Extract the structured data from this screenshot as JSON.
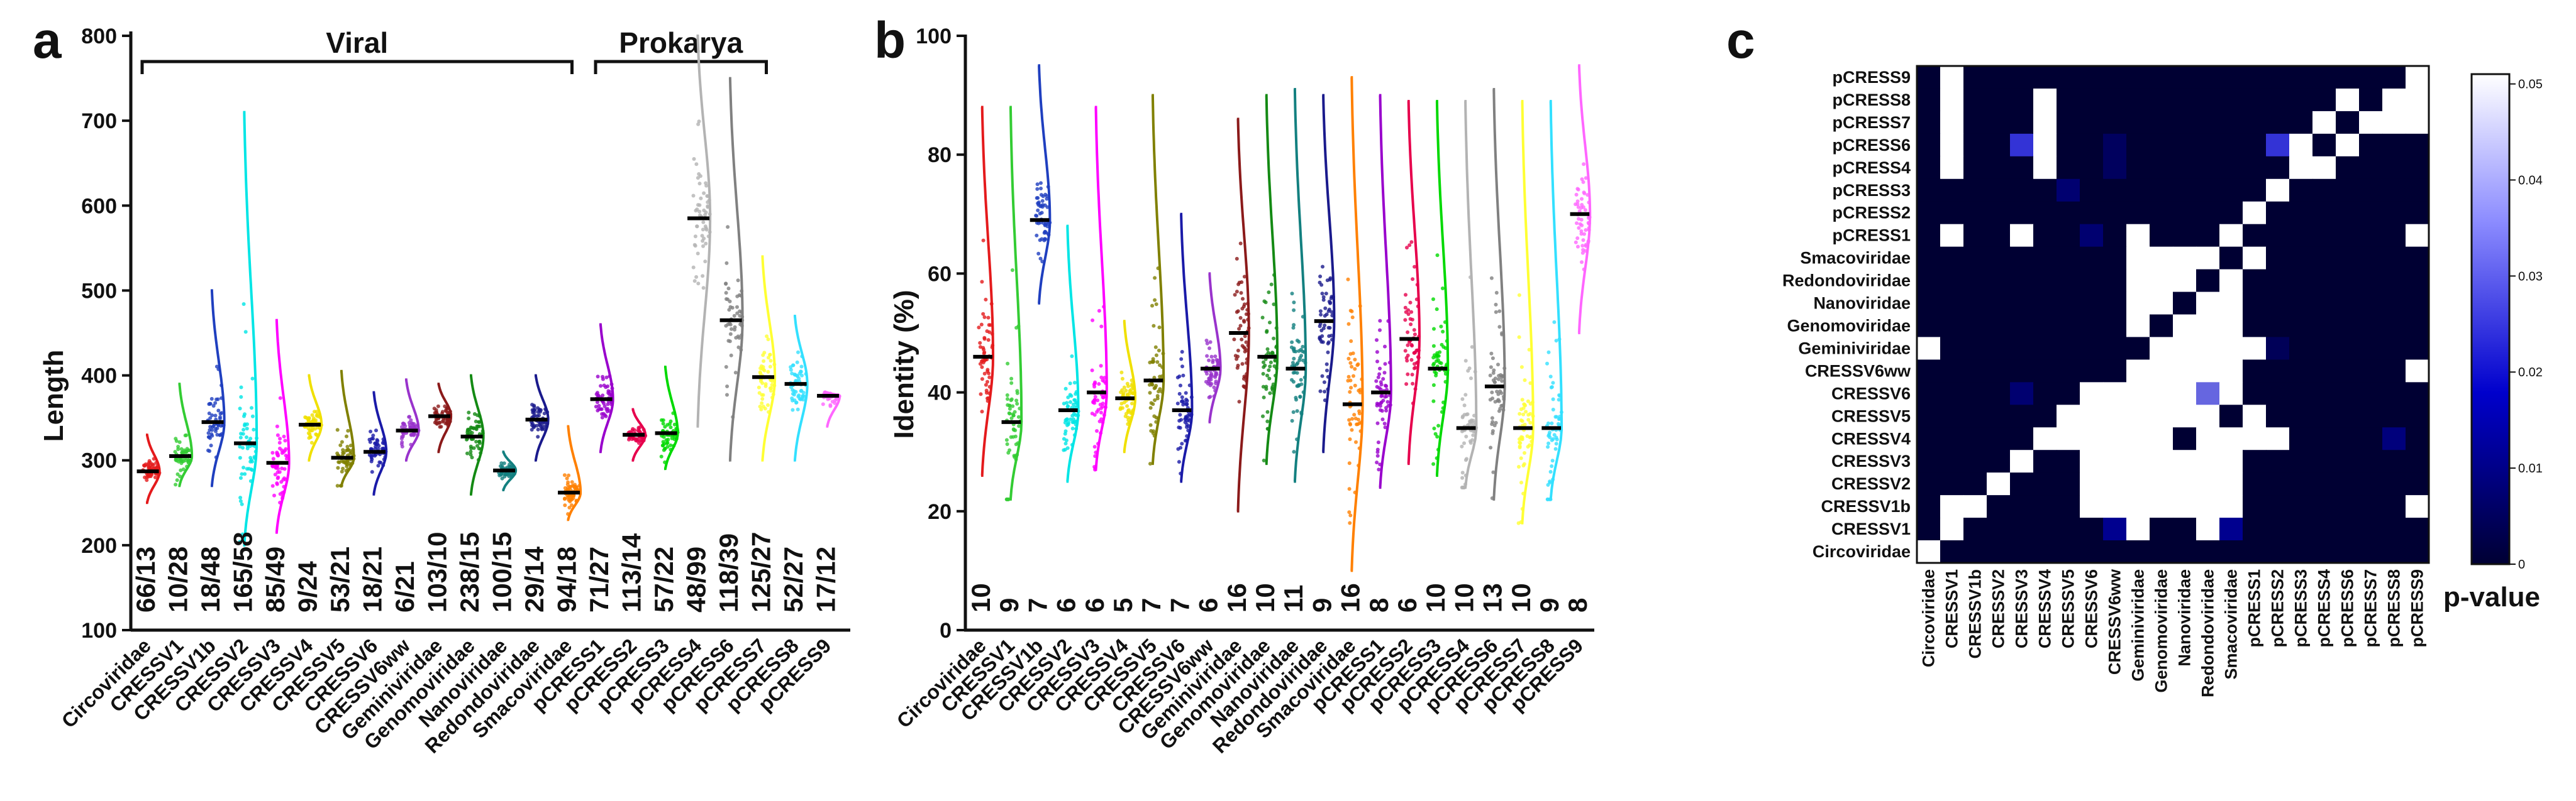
{
  "panels": {
    "a": "a",
    "b": "b",
    "c": "c"
  },
  "colors": [
    "#e41a1c",
    "#33cc33",
    "#1f3fbf",
    "#00e5e5",
    "#ff00ff",
    "#f0e000",
    "#808000",
    "#1a1aa8",
    "#9933cc",
    "#8b1a1a",
    "#148a14",
    "#138080",
    "#1a1a8c",
    "#ff8000",
    "#9900cc",
    "#e6004c",
    "#00d900",
    "#b3b3b3",
    "#808080",
    "#ffff33",
    "#33e0ff",
    "#ff66ff"
  ],
  "chart_data": [
    {
      "type": "scatter",
      "subtype": "half-violin with jittered points and median lines",
      "panel": "a",
      "title": "",
      "xlabel": "",
      "ylabel": "Length",
      "ylim": [
        100,
        800
      ],
      "yticks": [
        100,
        200,
        300,
        400,
        500,
        600,
        700,
        800
      ],
      "groups": [
        {
          "label": "Viral",
          "from": 0,
          "to": 13
        },
        {
          "label": "Prokarya",
          "from": 14,
          "to": 19
        }
      ],
      "categories": [
        "Circoviridae",
        "CRESSV1",
        "CRESSV1b",
        "CRESSV2",
        "CRESSV3",
        "CRESSV4",
        "CRESSV5",
        "CRESSV6",
        "CRESSV6ww",
        "Geminiviridae",
        "Genomoviridae",
        "Nanoviridae",
        "Redondoviridae",
        "Smacoviridae",
        "pCRESS1",
        "pCRESS2",
        "pCRESS3",
        "pCRESS4",
        "pCRESS6",
        "pCRESS7",
        "pCRESS8",
        "pCRESS9"
      ],
      "medians": [
        287,
        305,
        345,
        320,
        297,
        342,
        303,
        310,
        335,
        352,
        328,
        288,
        348,
        262,
        372,
        330,
        332,
        585,
        465,
        398,
        390,
        376
      ],
      "ranges": [
        [
          250,
          330
        ],
        [
          270,
          390
        ],
        [
          270,
          500
        ],
        [
          200,
          710
        ],
        [
          215,
          465
        ],
        [
          300,
          400
        ],
        [
          270,
          405
        ],
        [
          260,
          380
        ],
        [
          300,
          395
        ],
        [
          310,
          390
        ],
        [
          260,
          400
        ],
        [
          265,
          310
        ],
        [
          300,
          400
        ],
        [
          230,
          340
        ],
        [
          310,
          460
        ],
        [
          300,
          360
        ],
        [
          290,
          410
        ],
        [
          340,
          800
        ],
        [
          300,
          750
        ],
        [
          300,
          540
        ],
        [
          300,
          470
        ],
        [
          340,
          380
        ]
      ],
      "counts": [
        "66/13",
        "10/28",
        "18/48",
        "165/58",
        "85/49",
        "9/24",
        "53/21",
        "18/21",
        "6/21",
        "103/10",
        "238/15",
        "100/15",
        "29/14",
        "94/18",
        "71/27",
        "113/14",
        "57/22",
        "48/99",
        "118/39",
        "125/27",
        "52/27",
        "17/12"
      ]
    },
    {
      "type": "scatter",
      "subtype": "half-violin with jittered points and median lines",
      "panel": "b",
      "title": "",
      "xlabel": "",
      "ylabel": "Identity (%)",
      "ylim": [
        0,
        100
      ],
      "yticks": [
        0,
        20,
        40,
        60,
        80,
        100
      ],
      "categories": [
        "Circoviridae",
        "CRESSV1",
        "CRESSV1b",
        "CRESSV2",
        "CRESSV3",
        "CRESSV4",
        "CRESSV5",
        "CRESSV6",
        "CRESSV6ww",
        "Geminiviridae",
        "Genomoviridae",
        "Nanoviridae",
        "Redondoviridae",
        "Smacoviridae",
        "pCRESS1",
        "pCRESS2",
        "pCRESS3",
        "pCRESS4",
        "pCRESS6",
        "pCRESS7",
        "pCRESS8",
        "pCRESS9"
      ],
      "medians": [
        46,
        35,
        69,
        37,
        40,
        39,
        42,
        37,
        44,
        50,
        46,
        44,
        52,
        38,
        40,
        49,
        44,
        34,
        41,
        34,
        34,
        70
      ],
      "ranges": [
        [
          26,
          88
        ],
        [
          22,
          88
        ],
        [
          55,
          95
        ],
        [
          25,
          68
        ],
        [
          27,
          88
        ],
        [
          30,
          52
        ],
        [
          28,
          90
        ],
        [
          25,
          70
        ],
        [
          35,
          60
        ],
        [
          20,
          86
        ],
        [
          28,
          90
        ],
        [
          25,
          91
        ],
        [
          30,
          90
        ],
        [
          10,
          93
        ],
        [
          24,
          90
        ],
        [
          28,
          89
        ],
        [
          26,
          89
        ],
        [
          24,
          89
        ],
        [
          22,
          91
        ],
        [
          18,
          89
        ],
        [
          22,
          89
        ],
        [
          50,
          95
        ]
      ],
      "counts": [
        "10",
        "9",
        "7",
        "6",
        "6",
        "5",
        "7",
        "7",
        "6",
        "16",
        "10",
        "11",
        "9",
        "16",
        "8",
        "6",
        "10",
        "10",
        "13",
        "10",
        "9",
        "8"
      ]
    },
    {
      "type": "heatmap",
      "panel": "c",
      "title": "",
      "colorbar_label": "p-value",
      "colorbar_range": [
        0,
        0.05
      ],
      "colorbar_ticks": [
        "0",
        "0.01",
        "0.02",
        "0.03",
        "0.04",
        "0.05"
      ],
      "rows": [
        "pCRESS9",
        "pCRESS8",
        "pCRESS7",
        "pCRESS6",
        "pCRESS4",
        "pCRESS3",
        "pCRESS2",
        "pCRESS1",
        "Smacoviridae",
        "Redondoviridae",
        "Nanoviridae",
        "Genomoviridae",
        "Geminiviridae",
        "CRESSV6ww",
        "CRESSV6",
        "CRESSV5",
        "CRESSV4",
        "CRESSV3",
        "CRESSV2",
        "CRESSV1b",
        "CRESSV1",
        "Circoviridae"
      ],
      "cols": [
        "Circoviridae",
        "CRESSV1",
        "CRESSV1b",
        "CRESSV2",
        "CRESSV3",
        "CRESSV4",
        "CRESSV5",
        "CRESSV6",
        "CRESSV6ww",
        "Geminiviridae",
        "Genomoviridae",
        "Nanoviridae",
        "Redondoviridae",
        "Smacoviridae",
        "pCRESS1",
        "pCRESS2",
        "pCRESS3",
        "pCRESS4",
        "pCRESS6",
        "pCRESS7",
        "pCRESS8",
        "pCRESS9"
      ],
      "values": [
        [
          0,
          0.05,
          0,
          0,
          0,
          0,
          0,
          0,
          0,
          0,
          0,
          0,
          0,
          0,
          0,
          0,
          0,
          0,
          0,
          0,
          0,
          0.05
        ],
        [
          0,
          0.05,
          0,
          0,
          0,
          0.05,
          0,
          0,
          0,
          0,
          0,
          0,
          0,
          0,
          0,
          0,
          0,
          0,
          0.05,
          0,
          0.05,
          0.05
        ],
        [
          0,
          0.05,
          0,
          0,
          0,
          0.05,
          0,
          0,
          0,
          0,
          0,
          0,
          0,
          0,
          0,
          0,
          0,
          0.05,
          0,
          0.05,
          0.05,
          0.05
        ],
        [
          0,
          0.05,
          0,
          0,
          0.03,
          0.05,
          0,
          0.003,
          0.007,
          0,
          0,
          0,
          0,
          0,
          0,
          0.03,
          0.05,
          0,
          0.05,
          0,
          0,
          0
        ],
        [
          0,
          0.05,
          0,
          0,
          0,
          0.05,
          0,
          0.003,
          0.007,
          0,
          0,
          0,
          0,
          0,
          0,
          0,
          0.05,
          0.05,
          0,
          0,
          0,
          0
        ],
        [
          0,
          0,
          0,
          0,
          0,
          0,
          0.01,
          0,
          0,
          0,
          0,
          0,
          0,
          0,
          0,
          0.05,
          0,
          0,
          0,
          0,
          0,
          0
        ],
        [
          0,
          0,
          0,
          0,
          0,
          0,
          0,
          0,
          0,
          0,
          0,
          0,
          0,
          0,
          0.05,
          0,
          0,
          0,
          0,
          0,
          0,
          0
        ],
        [
          0,
          0.05,
          0,
          0,
          0.05,
          0,
          0,
          0.01,
          0,
          0.05,
          0,
          0,
          0,
          0.05,
          0,
          0,
          0,
          0,
          0,
          0,
          0,
          0.05
        ],
        [
          0,
          0,
          0,
          0,
          0,
          0,
          0,
          0,
          0,
          0.05,
          0.05,
          0.05,
          0.05,
          0,
          0.05,
          0,
          0,
          0,
          0,
          0,
          0,
          0
        ],
        [
          0,
          0,
          0,
          0,
          0,
          0,
          0,
          0,
          0,
          0.05,
          0.05,
          0.05,
          0,
          0.05,
          0,
          0,
          0,
          0,
          0,
          0,
          0,
          0
        ],
        [
          0,
          0,
          0,
          0,
          0,
          0,
          0.003,
          0,
          0,
          0.05,
          0.05,
          0,
          0.05,
          0.05,
          0,
          0,
          0,
          0,
          0,
          0,
          0,
          0
        ],
        [
          0,
          0,
          0,
          0,
          0,
          0,
          0,
          0,
          0,
          0.05,
          0,
          0.05,
          0.05,
          0.05,
          0,
          0,
          0,
          0,
          0,
          0,
          0,
          0
        ],
        [
          0.05,
          0,
          0,
          0,
          0,
          0,
          0,
          0,
          0,
          0,
          0.05,
          0.05,
          0.05,
          0.05,
          0.05,
          0.006,
          0,
          0,
          0,
          0,
          0,
          0
        ],
        [
          0,
          0,
          0,
          0,
          0,
          0,
          0,
          0,
          0,
          0.05,
          0.05,
          0.05,
          0.05,
          0.05,
          0,
          0,
          0,
          0,
          0,
          0,
          0,
          0.05
        ],
        [
          0,
          0,
          0,
          0,
          0.01,
          0,
          0,
          0.05,
          0.05,
          0.05,
          0.05,
          0.05,
          0.035,
          0.05,
          0,
          0,
          0,
          0,
          0,
          0,
          0,
          0
        ],
        [
          0,
          0,
          0,
          0,
          0,
          0,
          0.05,
          0.05,
          0.05,
          0.05,
          0.05,
          0.05,
          0.05,
          0,
          0.05,
          0,
          0.003,
          0,
          0,
          0,
          0,
          0
        ],
        [
          0,
          0,
          0,
          0,
          0,
          0.05,
          0.05,
          0.05,
          0.05,
          0.05,
          0.05,
          0.003,
          0.05,
          0.05,
          0.05,
          0.05,
          0,
          0,
          0,
          0,
          0.012,
          0
        ],
        [
          0,
          0,
          0,
          0,
          0.05,
          0,
          0,
          0.05,
          0.05,
          0.05,
          0.05,
          0.05,
          0.05,
          0.05,
          0,
          0,
          0,
          0,
          0,
          0,
          0,
          0
        ],
        [
          0,
          0,
          0,
          0.05,
          0,
          0,
          0,
          0.05,
          0.05,
          0.05,
          0.05,
          0.05,
          0.05,
          0.05,
          0,
          0,
          0,
          0,
          0,
          0,
          0,
          0
        ],
        [
          0,
          0.05,
          0.05,
          0,
          0,
          0,
          0,
          0.05,
          0.05,
          0.05,
          0.05,
          0.05,
          0.05,
          0.05,
          0,
          0,
          0,
          0,
          0,
          0,
          0,
          0.05
        ],
        [
          0,
          0.05,
          0,
          0,
          0,
          0,
          0,
          0,
          0.015,
          0.05,
          0,
          0,
          0.05,
          0.015,
          0,
          0,
          0,
          0,
          0,
          0,
          0,
          0
        ],
        [
          0.05,
          0,
          0,
          0,
          0,
          0,
          0,
          0,
          0,
          0,
          0,
          0,
          0,
          0,
          0,
          0,
          0,
          0,
          0,
          0,
          0,
          0
        ]
      ]
    }
  ]
}
